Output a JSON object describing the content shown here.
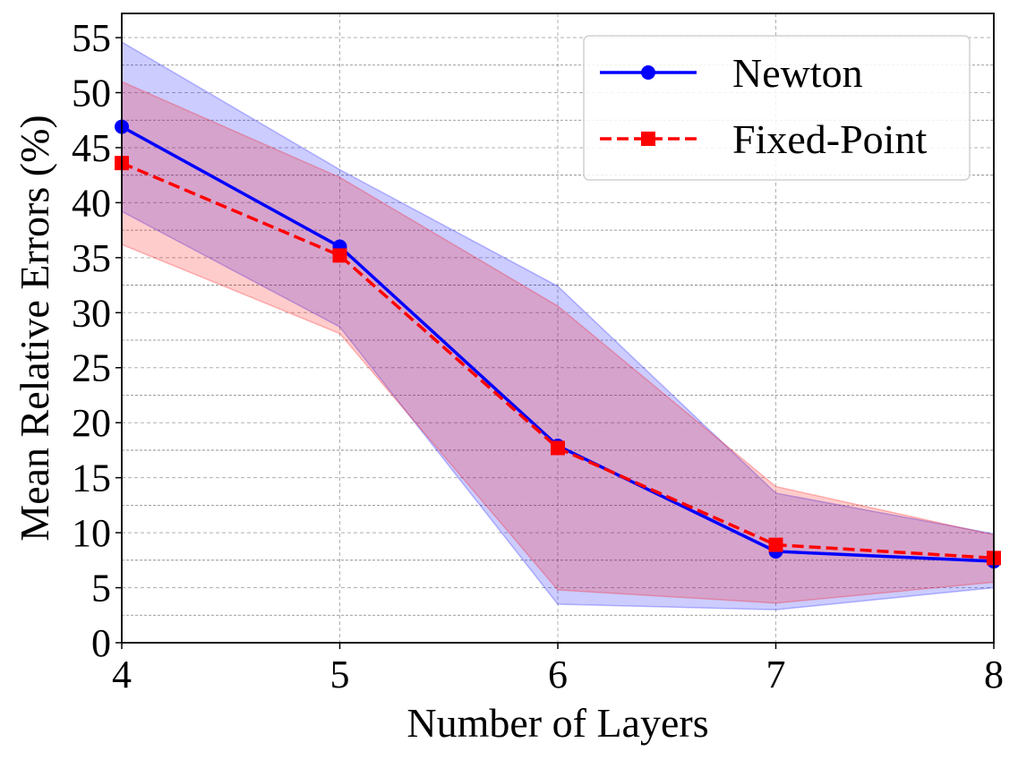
{
  "chart_data": {
    "type": "line",
    "x": [
      4,
      5,
      6,
      7,
      8
    ],
    "xlabel": "Number of Layers",
    "ylabel": "Mean Relative Errors (%)",
    "xlim": [
      4,
      8
    ],
    "ylim": [
      0,
      57.2
    ],
    "xticks": [
      4,
      5,
      6,
      7,
      8
    ],
    "yticks": [
      0,
      5,
      10,
      15,
      20,
      25,
      30,
      35,
      40,
      45,
      50,
      55
    ],
    "major_grid": [
      5,
      10,
      15,
      20,
      25,
      30,
      35,
      40,
      45,
      50,
      55
    ],
    "minor_grid": [
      2.5,
      7.5,
      12.5,
      17.5,
      22.5,
      27.5,
      32.5,
      37.5,
      42.5,
      47.5,
      52.5
    ],
    "grid": true,
    "legend_position": "top-right",
    "series": [
      {
        "name": "Newton",
        "color": "#0000ff",
        "band_color": "#0000ff",
        "marker": "circle",
        "linestyle": "solid",
        "values": [
          46.9,
          36.0,
          17.9,
          8.3,
          7.4
        ],
        "upper": [
          54.6,
          43.0,
          32.4,
          13.6,
          9.9
        ],
        "lower": [
          39.2,
          28.7,
          3.5,
          3.0,
          5.0
        ]
      },
      {
        "name": "Fixed-Point",
        "color": "#ff0000",
        "band_color": "#ff0000",
        "marker": "square",
        "linestyle": "dashed",
        "values": [
          43.6,
          35.2,
          17.7,
          8.9,
          7.7
        ],
        "upper": [
          51.0,
          42.3,
          30.6,
          14.2,
          9.8
        ],
        "lower": [
          36.2,
          28.1,
          4.8,
          3.6,
          5.5
        ]
      }
    ]
  }
}
